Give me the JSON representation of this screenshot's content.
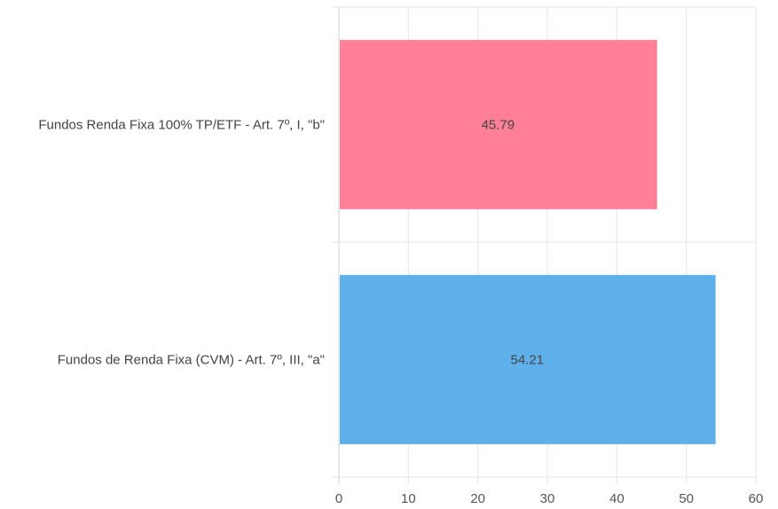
{
  "chart_data": {
    "type": "bar",
    "orientation": "horizontal",
    "categories": [
      "Fundos Renda Fixa 100% TP/ETF - Art. 7º, I, \"b\"",
      "Fundos de Renda Fixa (CVM) - Art. 7º, III, \"a\""
    ],
    "values": [
      45.79,
      54.21
    ],
    "data_labels": [
      "45.79",
      "54.21"
    ],
    "colors": [
      "#ff7f98",
      "#5fb0ea"
    ],
    "xlim": [
      0,
      60
    ],
    "xticks": [
      0,
      10,
      20,
      30,
      40,
      50,
      60
    ],
    "grid": true,
    "legend": "none"
  }
}
